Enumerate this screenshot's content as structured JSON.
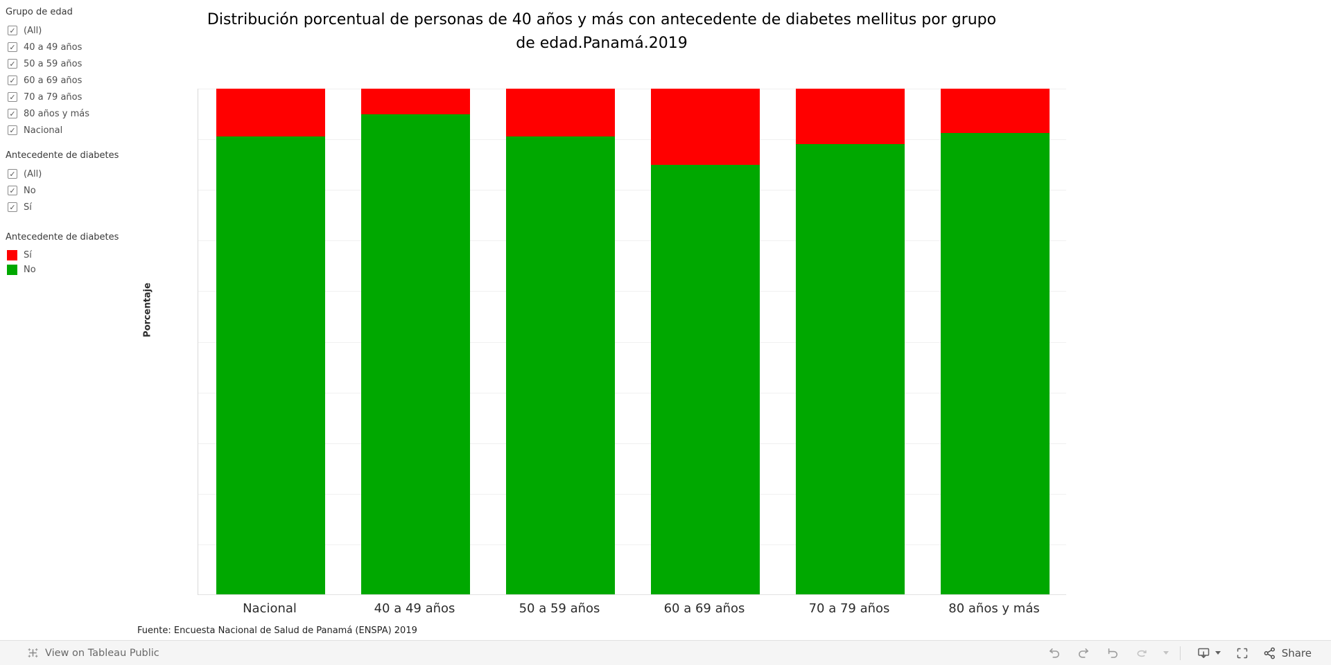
{
  "sidebar": {
    "filters": [
      {
        "title": "Grupo de edad",
        "options": [
          "(All)",
          "40 a 49 años",
          "50 a 59 años",
          "60 a 69 años",
          "70 a 79 años",
          "80 años y más",
          "Nacional"
        ]
      },
      {
        "title": "Antecedente de diabetes",
        "options": [
          "(All)",
          "No",
          "Sí"
        ]
      }
    ],
    "legend": {
      "title": "Antecedente de diabetes",
      "items": [
        {
          "label": "Sí",
          "color": "#ff0000"
        },
        {
          "label": "No",
          "color": "#00a800"
        }
      ]
    }
  },
  "chart_data": {
    "type": "bar",
    "stacked": true,
    "title": "Distribución porcentual de personas de 40 años y más con antecedente de diabetes mellitus por grupo de edad.Panamá.2019",
    "categories": [
      "Nacional",
      "40 a 49 años",
      "50 a 59 años",
      "60 a 69 años",
      "70 a 79 años",
      "80 años y más"
    ],
    "series": [
      {
        "name": "No",
        "color": "#00a800",
        "values": [
          90.5,
          95.0,
          90.6,
          85.0,
          89.1,
          91.2
        ]
      },
      {
        "name": "Sí",
        "color": "#ff0000",
        "values": [
          9.5,
          5.0,
          9.4,
          15.0,
          10.9,
          8.8
        ]
      }
    ],
    "ylabel": "Porcentaje",
    "ylim": [
      0,
      100
    ],
    "ytick_step": 10,
    "ytick_format": "one_decimal",
    "grid": true,
    "legend_position": "left"
  },
  "source": "Fuente: Encuesta Nacional de Salud de Panamá (ENSPA) 2019",
  "toolbar": {
    "view_label": "View on Tableau Public",
    "share_label": "Share",
    "icons": [
      "tableau-logo-icon",
      "undo-icon",
      "redo-icon",
      "revert-icon",
      "refresh-icon",
      "pause-dropdown-icon",
      "download-icon",
      "fullscreen-icon",
      "share-icon"
    ]
  }
}
